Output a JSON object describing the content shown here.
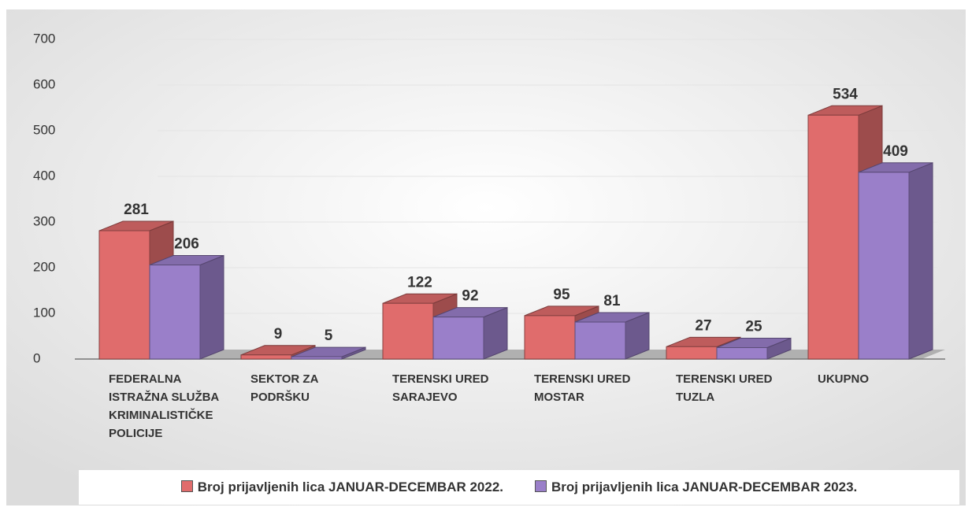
{
  "chart_data": {
    "type": "bar3d",
    "categories": [
      "FEDERALNA ISTRAŽNA SLUŽBA KRIMINALISTIČKE POLICIJE",
      "SEKTOR ZA PODRŠKU",
      "TERENSKI URED SARAJEVO",
      "TERENSKI URED MOSTAR",
      "TERENSKI URED TUZLA",
      "UKUPNO"
    ],
    "series": [
      {
        "name": "Broj prijavljenih lica JANUAR-DECEMBAR 2022.",
        "color": "#e06c6c",
        "values": [
          281,
          9,
          122,
          95,
          27,
          534
        ]
      },
      {
        "name": "Broj prijavljenih lica JANUAR-DECEMBAR 2023.",
        "color": "#9a7fc9",
        "values": [
          206,
          5,
          92,
          81,
          25,
          409
        ]
      }
    ],
    "ylim": [
      0,
      700
    ],
    "yticks": [
      0,
      100,
      200,
      300,
      400,
      500,
      600,
      700
    ],
    "grid": true,
    "legend": "bottom"
  }
}
